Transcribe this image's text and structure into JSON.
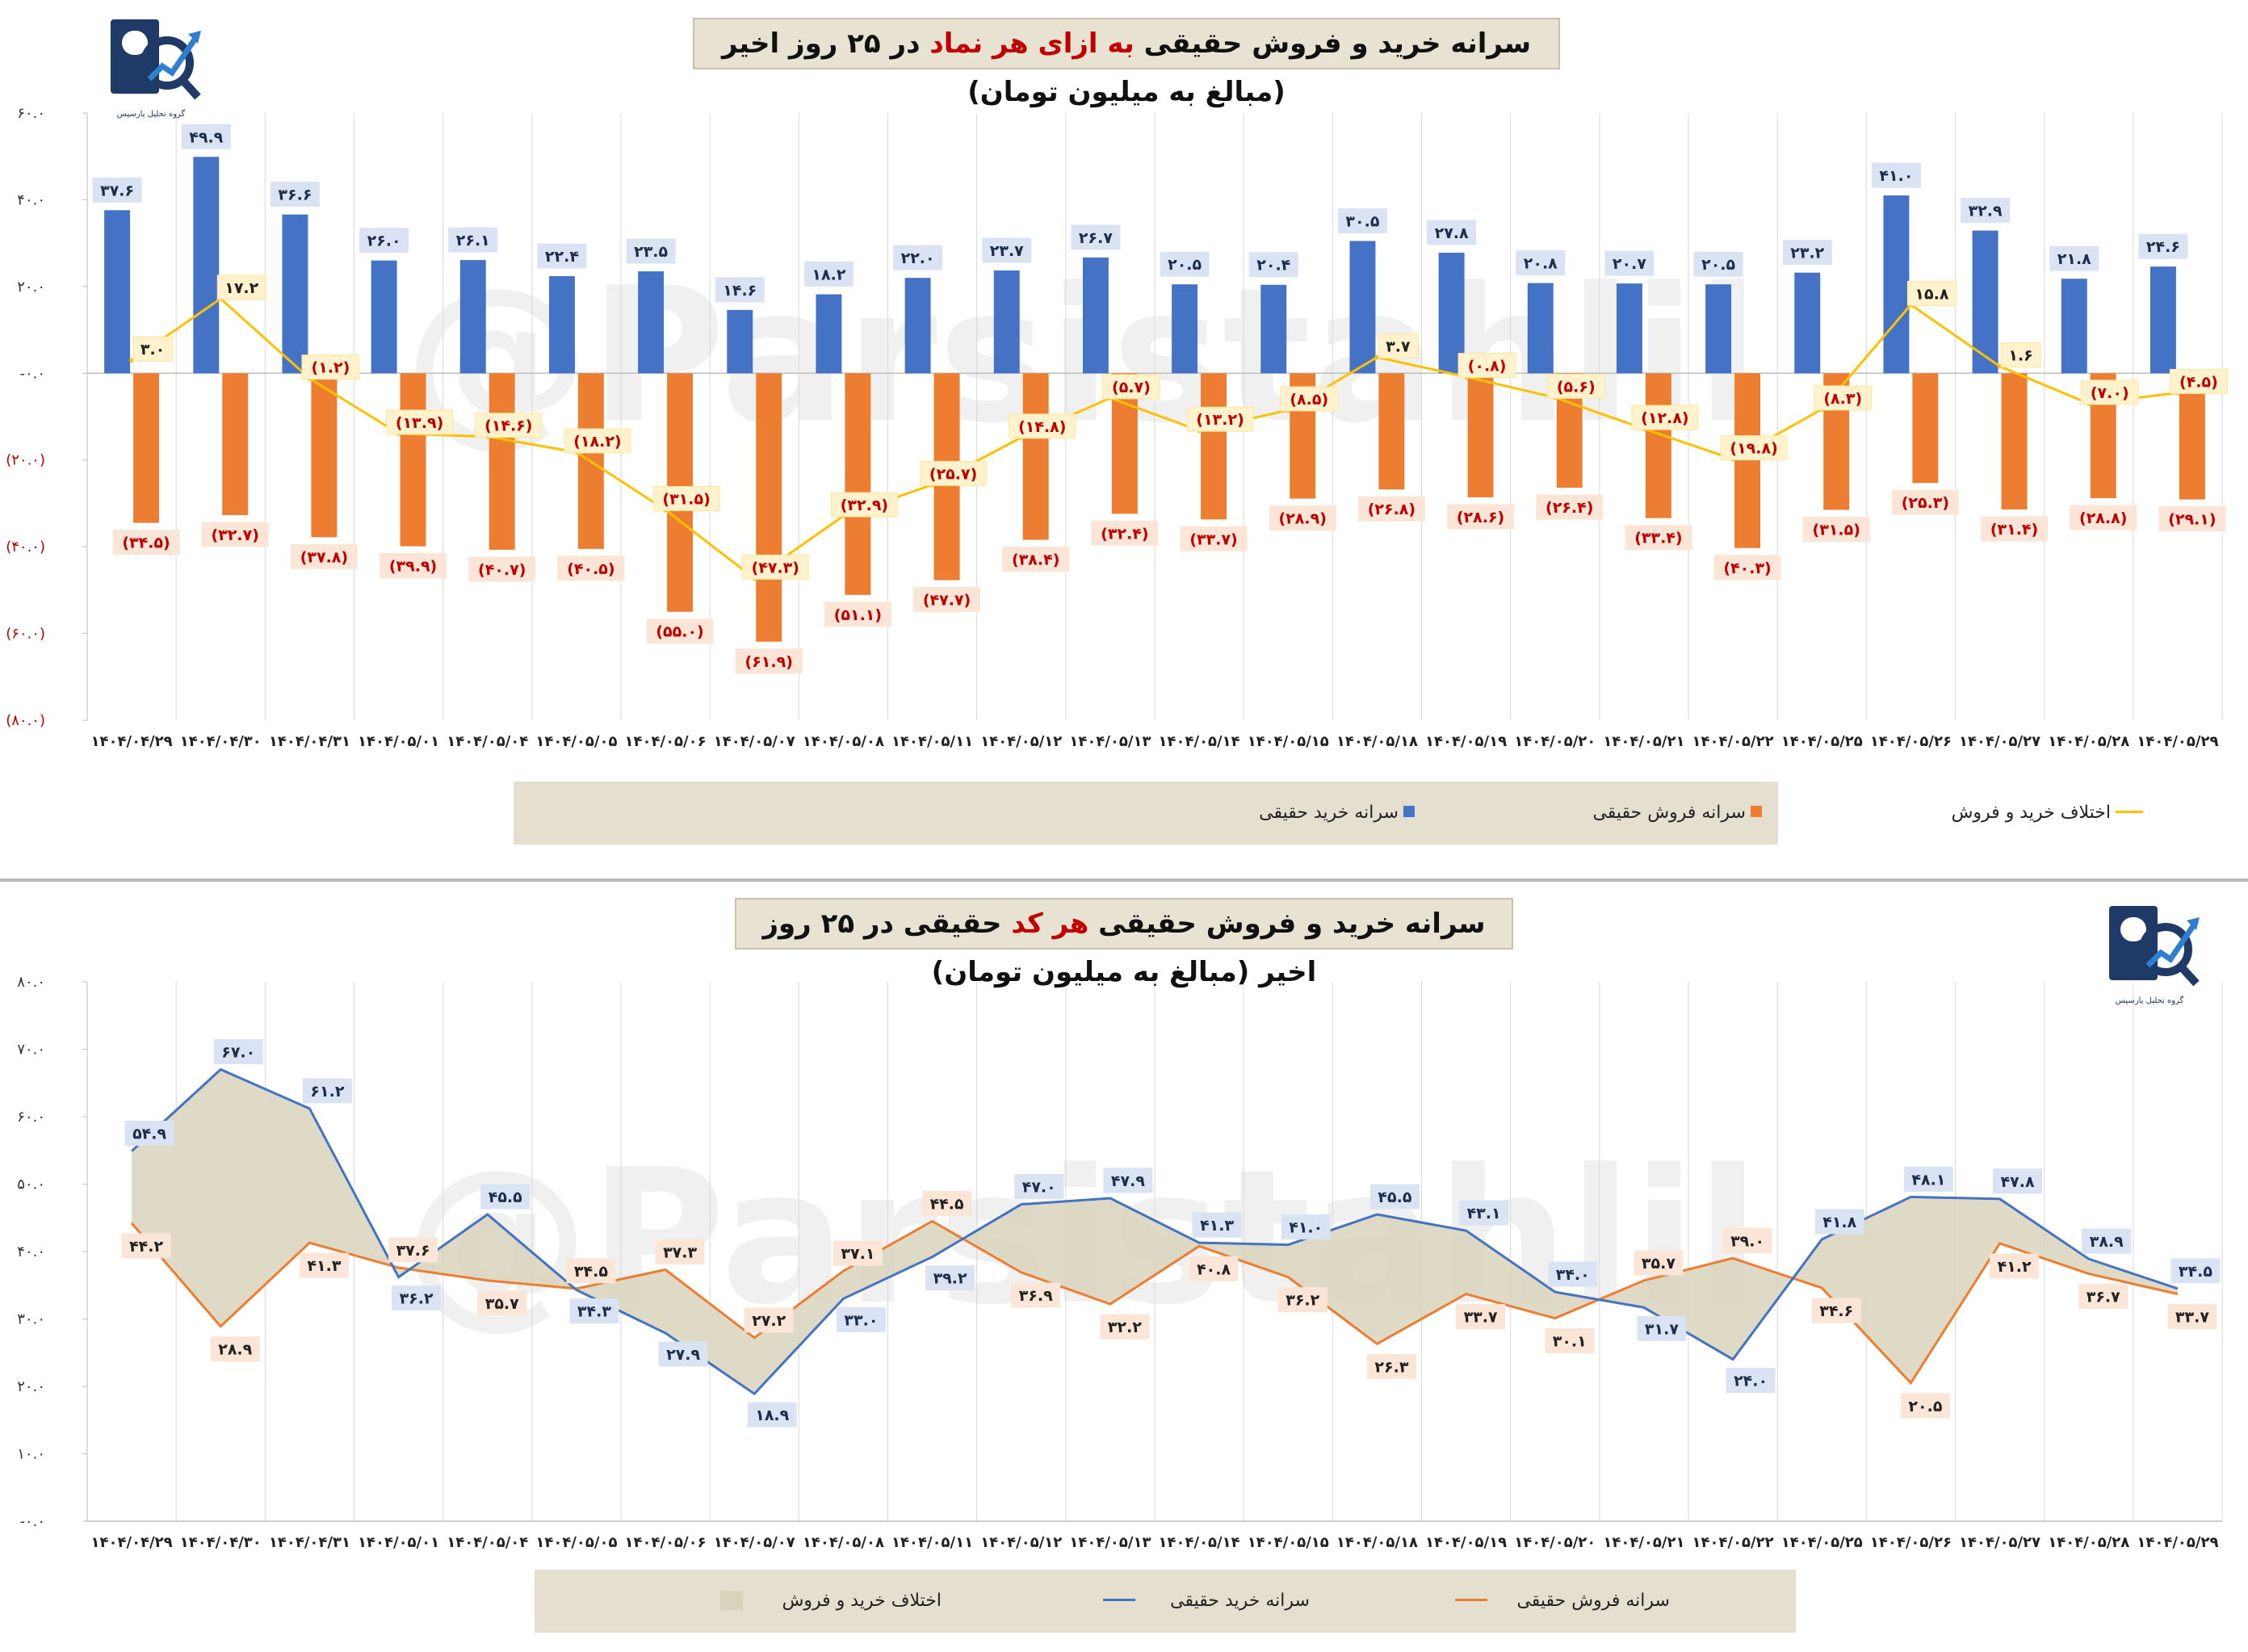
{
  "chart_data": [
    {
      "type": "bar",
      "title_parts": [
        "سرانه خرید و فروش حقیقی ",
        "به ازای هر نماد",
        " در ۲۵ روز اخیر (مبالغ به میلیون تومان)"
      ],
      "categories": [
        "۱۴۰۴/۰۴/۲۹",
        "۱۴۰۴/۰۴/۳۰",
        "۱۴۰۴/۰۴/۳۱",
        "۱۴۰۴/۰۵/۰۱",
        "۱۴۰۴/۰۵/۰۴",
        "۱۴۰۴/۰۵/۰۵",
        "۱۴۰۴/۰۵/۰۶",
        "۱۴۰۴/۰۵/۰۷",
        "۱۴۰۴/۰۵/۰۸",
        "۱۴۰۴/۰۵/۱۱",
        "۱۴۰۴/۰۵/۱۲",
        "۱۴۰۴/۰۵/۱۳",
        "۱۴۰۴/۰۵/۱۴",
        "۱۴۰۴/۰۵/۱۵",
        "۱۴۰۴/۰۵/۱۸",
        "۱۴۰۴/۰۵/۱۹",
        "۱۴۰۴/۰۵/۲۰",
        "۱۴۰۴/۰۵/۲۱",
        "۱۴۰۴/۰۵/۲۲",
        "۱۴۰۴/۰۵/۲۵",
        "۱۴۰۴/۰۵/۲۶",
        "۱۴۰۴/۰۵/۲۷",
        "۱۴۰۴/۰۵/۲۸",
        "۱۴۰۴/۰۵/۲۹"
      ],
      "ylim": [
        -80,
        60
      ],
      "yticks": [
        60,
        40,
        20,
        0,
        -20,
        -40,
        -60,
        -80
      ],
      "ytick_labels": [
        "۶۰.۰",
        "۴۰.۰",
        "۲۰.۰",
        "-۰.۰",
        "(۲۰.۰)",
        "(۴۰.۰)",
        "(۶۰.۰)",
        "(۸۰.۰)"
      ],
      "series": [
        {
          "name": "سرانه خرید حقیقی",
          "kind": "bar",
          "color": "#4472c4",
          "values": [
            37.6,
            49.9,
            36.6,
            26.0,
            26.1,
            22.4,
            23.5,
            14.6,
            18.2,
            22.0,
            23.7,
            26.7,
            20.5,
            20.4,
            30.5,
            27.8,
            20.8,
            20.7,
            20.5,
            23.2,
            41.0,
            32.9,
            21.8,
            24.6
          ],
          "labels": [
            "۳۷.۶",
            "۴۹.۹",
            "۳۶.۶",
            "۲۶.۰",
            "۲۶.۱",
            "۲۲.۴",
            "۲۳.۵",
            "۱۴.۶",
            "۱۸.۲",
            "۲۲.۰",
            "۲۳.۷",
            "۲۶.۷",
            "۲۰.۵",
            "۲۰.۴",
            "۳۰.۵",
            "۲۷.۸",
            "۲۰.۸",
            "۲۰.۷",
            "۲۰.۵",
            "۲۳.۲",
            "۴۱.۰",
            "۳۲.۹",
            "۲۱.۸",
            "۲۴.۶"
          ]
        },
        {
          "name": "سرانه فروش حقیقی",
          "kind": "bar",
          "color": "#ed7d31",
          "values": [
            -34.5,
            -32.7,
            -37.8,
            -39.9,
            -40.7,
            -40.5,
            -55.0,
            -61.9,
            -51.1,
            -47.7,
            -38.4,
            -32.4,
            -33.7,
            -28.9,
            -26.8,
            -28.6,
            -26.4,
            -33.4,
            -40.3,
            -31.5,
            -25.3,
            -31.4,
            -28.8,
            -29.1
          ],
          "labels": [
            "(۳۴.۵)",
            "(۳۲.۷)",
            "(۳۷.۸)",
            "(۳۹.۹)",
            "(۴۰.۷)",
            "(۴۰.۵)",
            "(۵۵.۰)",
            "(۶۱.۹)",
            "(۵۱.۱)",
            "(۴۷.۷)",
            "(۳۸.۴)",
            "(۳۲.۴)",
            "(۳۳.۷)",
            "(۲۸.۹)",
            "(۲۶.۸)",
            "(۲۸.۶)",
            "(۲۶.۴)",
            "(۳۳.۴)",
            "(۴۰.۳)",
            "(۳۱.۵)",
            "(۲۵.۳)",
            "(۳۱.۴)",
            "(۲۸.۸)",
            "(۲۹.۱)"
          ]
        },
        {
          "name": "اختلاف خرید و فروش",
          "kind": "line",
          "color": "#ffc000",
          "values": [
            3.0,
            17.2,
            -1.2,
            -13.9,
            -14.6,
            -18.2,
            -31.5,
            -47.3,
            -32.9,
            -25.7,
            -14.8,
            -5.7,
            -13.2,
            -8.5,
            3.7,
            -0.8,
            -5.6,
            -12.8,
            -19.8,
            -8.3,
            15.8,
            1.6,
            -7.0,
            -4.5
          ],
          "labels": [
            "۳.۰",
            "۱۷.۲",
            "(۱.۲)",
            "(۱۳.۹)",
            "(۱۴.۶)",
            "(۱۸.۲)",
            "(۳۱.۵)",
            "(۴۷.۳)",
            "(۳۲.۹)",
            "(۲۵.۷)",
            "(۱۴.۸)",
            "(۵.۷)",
            "(۱۳.۲)",
            "(۸.۵)",
            "۳.۷",
            "(۰.۸)",
            "(۵.۶)",
            "(۱۲.۸)",
            "(۱۹.۸)",
            "(۸.۳)",
            "۱۵.۸",
            "۱.۶",
            "(۷.۰)",
            "(۴.۵)"
          ]
        }
      ],
      "legend": [
        "سرانه خرید حقیقی",
        "سرانه فروش حقیقی",
        "اختلاف خرید و فروش"
      ],
      "legend_position": "bottom",
      "grid": "vertical"
    },
    {
      "type": "area",
      "title_parts": [
        "سرانه خرید و فروش حقیقی ",
        "هر کد",
        " حقیقی در ۲۵ روز اخیر (مبالغ به میلیون تومان)"
      ],
      "categories": [
        "۱۴۰۴/۰۴/۲۹",
        "۱۴۰۴/۰۴/۳۰",
        "۱۴۰۴/۰۴/۳۱",
        "۱۴۰۴/۰۵/۰۱",
        "۱۴۰۴/۰۵/۰۴",
        "۱۴۰۴/۰۵/۰۵",
        "۱۴۰۴/۰۵/۰۶",
        "۱۴۰۴/۰۵/۰۷",
        "۱۴۰۴/۰۵/۰۸",
        "۱۴۰۴/۰۵/۱۱",
        "۱۴۰۴/۰۵/۱۲",
        "۱۴۰۴/۰۵/۱۳",
        "۱۴۰۴/۰۵/۱۴",
        "۱۴۰۴/۰۵/۱۵",
        "۱۴۰۴/۰۵/۱۸",
        "۱۴۰۴/۰۵/۱۹",
        "۱۴۰۴/۰۵/۲۰",
        "۱۴۰۴/۰۵/۲۱",
        "۱۴۰۴/۰۵/۲۲",
        "۱۴۰۴/۰۵/۲۵",
        "۱۴۰۴/۰۵/۲۶",
        "۱۴۰۴/۰۵/۲۷",
        "۱۴۰۴/۰۵/۲۸",
        "۱۴۰۴/۰۵/۲۹"
      ],
      "ylim": [
        0,
        80
      ],
      "yticks": [
        80,
        70,
        60,
        50,
        40,
        30,
        20,
        10,
        0
      ],
      "ytick_labels": [
        "۸۰.۰",
        "۷۰.۰",
        "۶۰.۰",
        "۵۰.۰",
        "۴۰.۰",
        "۳۰.۰",
        "۲۰.۰",
        "۱۰.۰",
        "-۰.۰"
      ],
      "series": [
        {
          "name": "سرانه خرید حقیقی",
          "kind": "line",
          "color": "#4472c4",
          "values": [
            54.9,
            67.0,
            61.2,
            36.2,
            45.5,
            34.3,
            27.9,
            18.9,
            33.0,
            39.2,
            47.0,
            47.9,
            41.3,
            41.0,
            45.5,
            43.1,
            34.0,
            31.7,
            24.0,
            41.8,
            48.1,
            47.8,
            38.9,
            34.5
          ],
          "labels": [
            "۵۴.۹",
            "۶۷.۰",
            "۶۱.۲",
            "۳۶.۲",
            "۴۵.۵",
            "۳۴.۳",
            "۲۷.۹",
            "۱۸.۹",
            "۳۳.۰",
            "۳۹.۲",
            "۴۷.۰",
            "۴۷.۹",
            "۴۱.۳",
            "۴۱.۰",
            "۴۵.۵",
            "۴۳.۱",
            "۳۴.۰",
            "۳۱.۷",
            "۲۴.۰",
            "۴۱.۸",
            "۴۸.۱",
            "۴۷.۸",
            "۳۸.۹",
            "۳۴.۵"
          ]
        },
        {
          "name": "سرانه فروش حقیقی",
          "kind": "line",
          "color": "#ed7d31",
          "values": [
            44.2,
            28.9,
            41.3,
            37.6,
            35.7,
            34.5,
            37.3,
            27.2,
            37.1,
            44.5,
            36.9,
            32.2,
            40.8,
            36.2,
            26.3,
            33.7,
            30.1,
            35.7,
            39.0,
            34.6,
            20.5,
            41.2,
            36.7,
            33.7
          ],
          "labels": [
            "۴۴.۲",
            "۲۸.۹",
            "۴۱.۳",
            "۳۷.۶",
            "۳۵.۷",
            "۳۴.۵",
            "۳۷.۳",
            "۲۷.۲",
            "۳۷.۱",
            "۴۴.۵",
            "۳۶.۹",
            "۳۲.۲",
            "۴۰.۸",
            "۳۶.۲",
            "۲۶.۳",
            "۳۳.۷",
            "۳۰.۱",
            "۳۵.۷",
            "۳۹.۰",
            "۳۴.۶",
            "۲۰.۵",
            "۴۱.۲",
            "۳۶.۷",
            "۳۳.۷"
          ]
        },
        {
          "name": "اختلاف خرید و فروش",
          "kind": "band",
          "color": "#d9d3bb"
        }
      ],
      "legend": [
        "اختلاف خرید و فروش",
        "سرانه خرید حقیقی",
        "سرانه فروش حقیقی"
      ],
      "legend_position": "bottom",
      "grid": "vertical"
    }
  ],
  "watermark": "@Parsistahlil",
  "logo_caption": "گروه تحلیل پارسیس"
}
